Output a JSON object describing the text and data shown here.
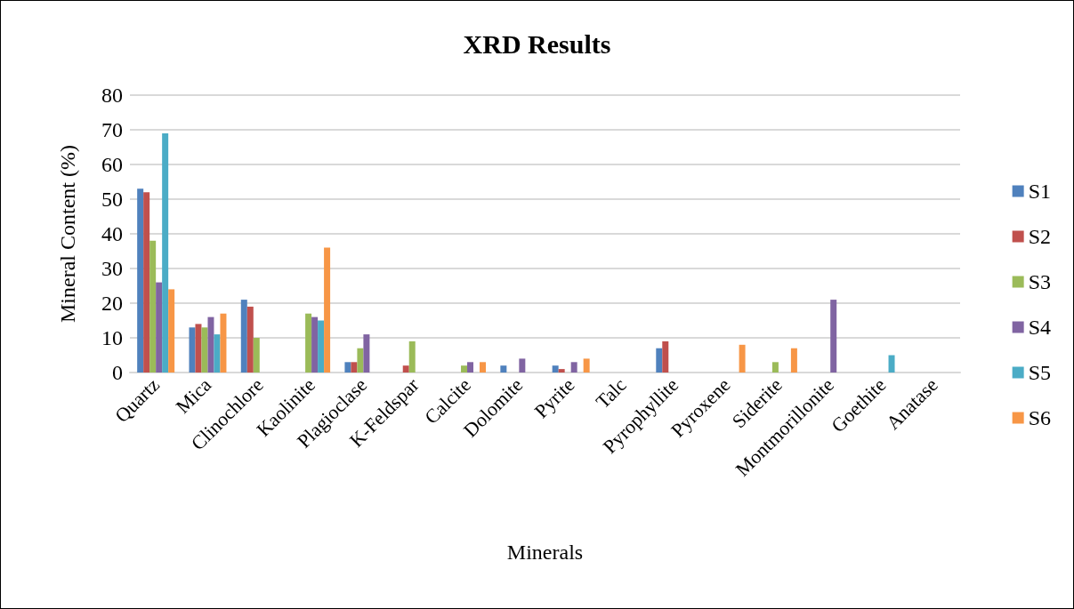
{
  "chart_data": {
    "type": "bar",
    "title": "XRD Results",
    "xlabel": "Minerals",
    "ylabel": "Mineral Content (%)",
    "categories": [
      "Quartz",
      "Mica",
      "Clinochlore",
      "Kaolinite",
      "Plagioclase",
      "K-Feldspar",
      "Calcite",
      "Dolomite",
      "Pyrite",
      "Talc",
      "Pyrophyllite",
      "Pyroxene",
      "Siderite",
      "Montmorillonite",
      "Goethite",
      "Anatase"
    ],
    "series": [
      {
        "name": "S1",
        "color": "#4f81bd",
        "values": [
          53,
          13,
          21,
          0,
          3,
          0,
          0,
          2,
          2,
          0,
          7,
          0,
          0,
          0,
          0,
          0
        ]
      },
      {
        "name": "S2",
        "color": "#c0504d",
        "values": [
          52,
          14,
          19,
          0,
          3,
          2,
          0,
          0,
          1,
          0,
          9,
          0,
          0,
          0,
          0,
          0
        ]
      },
      {
        "name": "S3",
        "color": "#9bbb59",
        "values": [
          38,
          13,
          10,
          17,
          7,
          9,
          2,
          0,
          0,
          0,
          0,
          0,
          3,
          0,
          0,
          0
        ]
      },
      {
        "name": "S4",
        "color": "#8064a2",
        "values": [
          26,
          16,
          0,
          16,
          11,
          0,
          3,
          4,
          3,
          0,
          0,
          0,
          0,
          21,
          0,
          0
        ]
      },
      {
        "name": "S5",
        "color": "#4bacc6",
        "values": [
          69,
          11,
          0,
          15,
          0,
          0,
          0,
          0,
          0,
          0,
          0,
          0,
          0,
          0,
          5,
          0
        ]
      },
      {
        "name": "S6",
        "color": "#f79646",
        "values": [
          24,
          17,
          0,
          36,
          0,
          0,
          3,
          0,
          4,
          0,
          0,
          8,
          7,
          0,
          0,
          0
        ]
      }
    ],
    "ylim": [
      0,
      80
    ],
    "yticks": [
      0,
      10,
      20,
      30,
      40,
      50,
      60,
      70,
      80
    ],
    "grid": "y",
    "legend": "right"
  }
}
